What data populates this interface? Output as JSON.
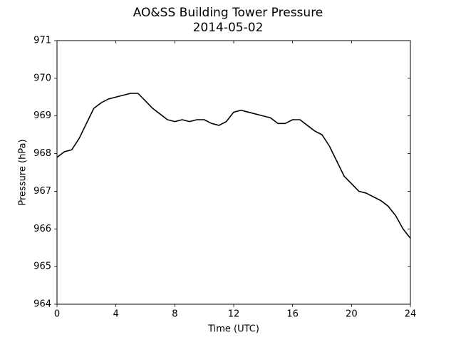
{
  "chart_data": {
    "type": "line",
    "title": "AO&SS Building Tower Pressure",
    "subtitle": "2014-05-02",
    "x_label": "Time (UTC)",
    "y_label": "Pressure (hPa)",
    "x": [
      0,
      0.5,
      1,
      1.5,
      2,
      2.5,
      3,
      3.5,
      4,
      4.5,
      5,
      5.5,
      6,
      6.5,
      7,
      7.5,
      8,
      8.5,
      9,
      9.5,
      10,
      10.5,
      11,
      11.5,
      12,
      12.5,
      13,
      13.5,
      14,
      14.5,
      15,
      15.5,
      16,
      16.5,
      17,
      17.5,
      18,
      18.5,
      19,
      19.5,
      20,
      20.5,
      21,
      21.5,
      22,
      22.5,
      23,
      23.5,
      24
    ],
    "series": [
      {
        "name": "Pressure",
        "color": "#000000",
        "values": [
          967.9,
          968.05,
          968.1,
          968.4,
          968.8,
          969.2,
          969.35,
          969.45,
          969.5,
          969.55,
          969.6,
          969.6,
          969.4,
          969.2,
          969.05,
          968.9,
          968.85,
          968.9,
          968.85,
          968.9,
          968.9,
          968.8,
          968.75,
          968.85,
          969.1,
          969.15,
          969.1,
          969.05,
          969.0,
          968.95,
          968.8,
          968.8,
          968.9,
          968.9,
          968.75,
          968.6,
          968.5,
          968.2,
          967.8,
          967.4,
          967.2,
          967.0,
          966.95,
          966.85,
          966.75,
          966.6,
          966.35,
          966.0,
          965.75
        ]
      }
    ],
    "xlim": [
      0,
      24
    ],
    "xticks": [
      0,
      4,
      8,
      12,
      16,
      20,
      24
    ],
    "ylim": [
      964,
      971
    ],
    "yticks": [
      964,
      965,
      966,
      967,
      968,
      969,
      970,
      971
    ]
  }
}
